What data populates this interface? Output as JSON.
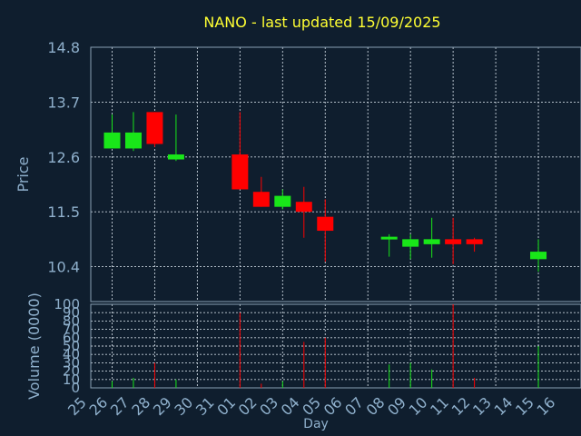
{
  "chart_data": {
    "type": "candlestick",
    "title": "NANO - last updated 15/09/2025",
    "xlabel": "Day",
    "price_axis": {
      "label": "Price",
      "ylim": [
        9.7,
        14.8
      ],
      "ticks": [
        "14.8",
        "13.7",
        "12.6",
        "11.5",
        "10.4"
      ]
    },
    "volume_axis": {
      "label": "Volume (0000)",
      "ylim": [
        0,
        100
      ],
      "ticks": [
        "100",
        "90",
        "80",
        "70",
        "60",
        "50",
        "40",
        "30",
        "20",
        "10",
        "0"
      ]
    },
    "x_ticks": [
      "25",
      "26",
      "27",
      "28",
      "29",
      "30",
      "31",
      "01",
      "02",
      "03",
      "04",
      "05",
      "06",
      "07",
      "08",
      "09",
      "10",
      "11",
      "12",
      "13",
      "14",
      "15",
      "16"
    ],
    "grid": true,
    "colors": {
      "up": "#19e619",
      "down": "#ff0000",
      "title": "#ffff33",
      "axis_text": "#8fb0cc",
      "background": "#0f1e2e"
    },
    "candles": [
      {
        "day": "26",
        "open": 12.77,
        "high": 13.45,
        "low": 12.77,
        "close": 13.09,
        "volume": 8
      },
      {
        "day": "27",
        "open": 12.77,
        "high": 13.5,
        "low": 12.72,
        "close": 13.09,
        "volume": 12
      },
      {
        "day": "28",
        "open": 13.5,
        "high": 13.5,
        "low": 12.8,
        "close": 12.86,
        "volume": 30
      },
      {
        "day": "29",
        "open": 12.55,
        "high": 13.45,
        "low": 12.52,
        "close": 12.65,
        "volume": 10
      },
      {
        "day": "01",
        "open": 12.65,
        "high": 13.5,
        "low": 11.95,
        "close": 11.95,
        "volume": 90
      },
      {
        "day": "02",
        "open": 11.9,
        "high": 12.2,
        "low": 11.6,
        "close": 11.6,
        "volume": 5
      },
      {
        "day": "03",
        "open": 11.6,
        "high": 11.95,
        "low": 11.55,
        "close": 11.82,
        "volume": 8
      },
      {
        "day": "04",
        "open": 11.7,
        "high": 12.0,
        "low": 10.98,
        "close": 11.5,
        "volume": 55
      },
      {
        "day": "05",
        "open": 11.4,
        "high": 11.75,
        "low": 10.5,
        "close": 11.12,
        "volume": 60
      },
      {
        "day": "08",
        "open": 10.95,
        "high": 11.05,
        "low": 10.6,
        "close": 11.0,
        "volume": 28
      },
      {
        "day": "09",
        "open": 10.8,
        "high": 11.05,
        "low": 10.55,
        "close": 10.95,
        "volume": 30
      },
      {
        "day": "10",
        "open": 10.85,
        "high": 11.38,
        "low": 10.58,
        "close": 10.95,
        "volume": 22
      },
      {
        "day": "11",
        "open": 10.95,
        "high": 11.38,
        "low": 10.45,
        "close": 10.85,
        "volume": 100
      },
      {
        "day": "12",
        "open": 10.95,
        "high": 10.98,
        "low": 10.7,
        "close": 10.85,
        "volume": 12
      },
      {
        "day": "15",
        "open": 10.55,
        "high": 10.95,
        "low": 10.3,
        "close": 10.7,
        "volume": 50
      }
    ]
  }
}
